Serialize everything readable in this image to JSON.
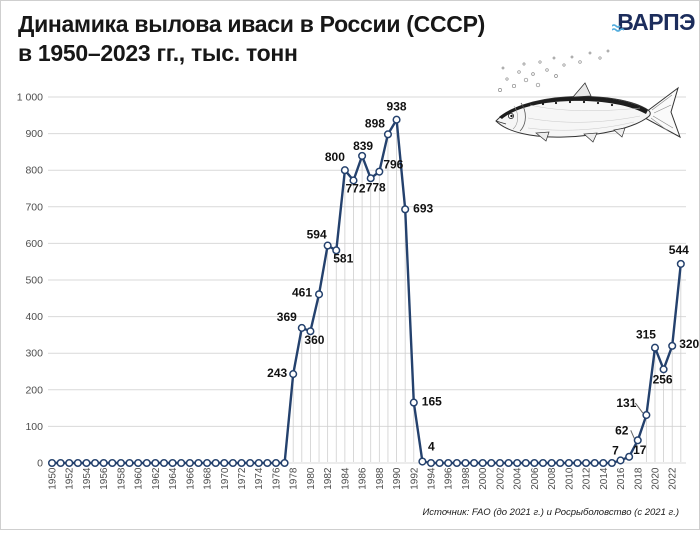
{
  "header": {
    "title_line1": "Динамика вылова иваси в России (СССР)",
    "title_line2": "в 1950–2023 гг., тыс. тонн",
    "logo_text": "ВАРПЭ"
  },
  "footer": {
    "source": "Источник: FAO (до 2021 г.) и Росрыболовство (с 2021 г.)"
  },
  "chart_data": {
    "type": "line",
    "title": "Динамика вылова иваси в России (СССР) в 1950–2023 гг., тыс. тонн",
    "units": "тыс. тонн",
    "ylim": [
      0,
      1000
    ],
    "ytick_step": 100,
    "ytick_labels": [
      "0",
      "100",
      "200",
      "300",
      "400",
      "500",
      "600",
      "700",
      "800",
      "900",
      "1 000"
    ],
    "xticks": [
      1950,
      1952,
      1954,
      1956,
      1958,
      1960,
      1962,
      1964,
      1966,
      1968,
      1970,
      1972,
      1974,
      1976,
      1978,
      1980,
      1982,
      1984,
      1986,
      1988,
      1990,
      1992,
      1994,
      1996,
      1998,
      2000,
      2002,
      2004,
      2006,
      2008,
      2010,
      2012,
      2014,
      2016,
      2018,
      2020,
      2022
    ],
    "grid": "horizontal",
    "legend": "none",
    "series": [
      {
        "name": "Вылов иваси, тыс. тонн",
        "x": [
          1950,
          1951,
          1952,
          1953,
          1954,
          1955,
          1956,
          1957,
          1958,
          1959,
          1960,
          1961,
          1962,
          1963,
          1964,
          1965,
          1966,
          1967,
          1968,
          1969,
          1970,
          1971,
          1972,
          1973,
          1974,
          1975,
          1976,
          1977,
          1978,
          1979,
          1980,
          1981,
          1982,
          1983,
          1984,
          1985,
          1986,
          1987,
          1988,
          1989,
          1990,
          1991,
          1992,
          1993,
          1994,
          1995,
          1996,
          1997,
          1998,
          1999,
          2000,
          2001,
          2002,
          2003,
          2004,
          2005,
          2006,
          2007,
          2008,
          2009,
          2010,
          2011,
          2012,
          2013,
          2014,
          2015,
          2016,
          2017,
          2018,
          2019,
          2020,
          2021,
          2022,
          2023
        ],
        "values": [
          0,
          0,
          0,
          0,
          0,
          0,
          0,
          0,
          0,
          0,
          0,
          0,
          0,
          0,
          0,
          0,
          0,
          0,
          0,
          0,
          0,
          0,
          0,
          0,
          0,
          0,
          0,
          0,
          243,
          369,
          360,
          461,
          594,
          581,
          800,
          772,
          839,
          778,
          796,
          898,
          938,
          693,
          165,
          4,
          0,
          0,
          0,
          0,
          0,
          0,
          0,
          0,
          0,
          0,
          0,
          0,
          0,
          0,
          0,
          0,
          0,
          0,
          0,
          0,
          0,
          0,
          7,
          17,
          62,
          131,
          315,
          256,
          320,
          544
        ]
      }
    ],
    "colors": {
      "line": "#24416d",
      "marker_fill": "#ffffff",
      "grid": "#d9d9d9",
      "dropline": "#cfcfcf",
      "axis_text": "#4d4d4d",
      "data_label": "#111111",
      "leader": "#666666"
    },
    "dropline_years": [
      1978,
      1979,
      1980,
      1981,
      1982,
      1983,
      1984,
      1985,
      1986,
      1987,
      1988,
      1989,
      1990,
      1991,
      1992,
      2019,
      2020,
      2021,
      2022,
      2023
    ],
    "label_layout": {
      "1978": {
        "dx": -6,
        "dy": 3,
        "anchor": "end"
      },
      "1979": {
        "dx": -5,
        "dy": -7,
        "anchor": "end"
      },
      "1980": {
        "dx": 4,
        "dy": 13
      },
      "1981": {
        "dx": -7,
        "dy": 2,
        "anchor": "end"
      },
      "1982": {
        "dx": -11,
        "dy": -7
      },
      "1983": {
        "dx": 7,
        "dy": 12
      },
      "1984": {
        "dx": -10,
        "dy": -9
      },
      "1985": {
        "dx": 2,
        "dy": 12
      },
      "1986": {
        "dx": 1,
        "dy": -6
      },
      "1987": {
        "dx": 5,
        "dy": 13
      },
      "1988": {
        "dx": 4,
        "dy": -3,
        "anchor": "start"
      },
      "1989": {
        "dx": -13,
        "dy": -7
      },
      "1990": {
        "dx": 0,
        "dy": -9
      },
      "1991": {
        "dx": 8,
        "dy": 3,
        "anchor": "start"
      },
      "1992": {
        "dx": 8,
        "dy": 3,
        "anchor": "start"
      },
      "1993": {
        "dx": 9,
        "dy": -11
      },
      "2016": {
        "dx": -5,
        "dy": -6
      },
      "2017": {
        "dx": 4,
        "dy": -3,
        "anchor": "start"
      },
      "2018": {
        "dx": -16,
        "dy": -6,
        "leader": true
      },
      "2019": {
        "dx": -20,
        "dy": -8,
        "leader": true
      },
      "2020": {
        "dx": -9,
        "dy": -9
      },
      "2021": {
        "dx": -1,
        "dy": 14
      },
      "2022": {
        "dx": 7,
        "dy": 2,
        "anchor": "start"
      },
      "2023": {
        "dx": -2,
        "dy": -10
      }
    }
  }
}
